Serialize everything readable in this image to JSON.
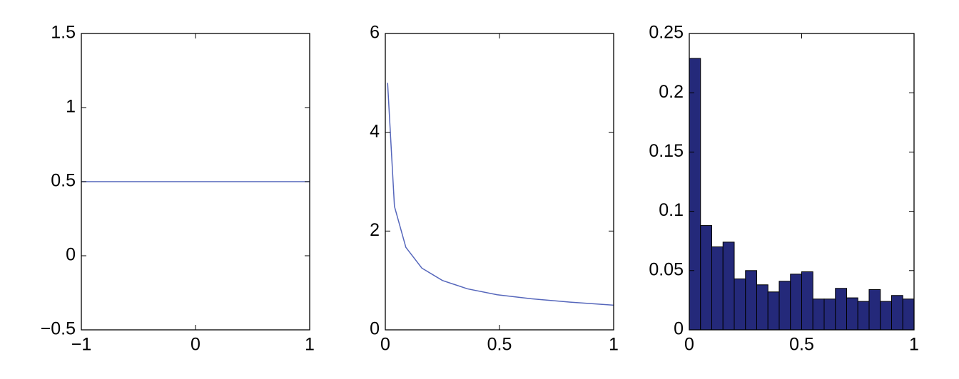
{
  "chart_data": [
    {
      "type": "line",
      "color": "#5566bb",
      "x": [
        -1,
        1
      ],
      "values": [
        0.5,
        0.5
      ],
      "xlim": [
        -1,
        1
      ],
      "xticks": [
        {
          "value": -1,
          "label": "−1"
        },
        0,
        1
      ],
      "ylim": [
        -0.5,
        1.5
      ],
      "yticks": [
        {
          "value": -0.5,
          "label": "−0.5"
        },
        0,
        0.5,
        1,
        1.5
      ]
    },
    {
      "type": "line",
      "color": "#5566bb",
      "x": [
        0.01,
        0.04,
        0.09,
        0.16,
        0.25,
        0.36,
        0.49,
        0.64,
        0.81,
        1
      ],
      "values": [
        5,
        2.5,
        1.67,
        1.25,
        1,
        0.83,
        0.71,
        0.63,
        0.56,
        0.5
      ],
      "xlim": [
        0,
        1
      ],
      "xticks": [
        0,
        0.5,
        1
      ],
      "ylim": [
        0,
        6
      ],
      "yticks": [
        0,
        2,
        4,
        6
      ]
    },
    {
      "type": "histogram",
      "color": "#24297a",
      "bins": [
        0,
        0.05,
        0.1,
        0.15,
        0.2,
        0.25,
        0.3,
        0.35,
        0.4,
        0.45,
        0.5,
        0.55,
        0.6,
        0.65,
        0.7,
        0.75,
        0.8,
        0.85,
        0.9,
        0.95,
        1
      ],
      "values": [
        0.229,
        0.088,
        0.07,
        0.074,
        0.043,
        0.05,
        0.038,
        0.032,
        0.041,
        0.047,
        0.049,
        0.026,
        0.026,
        0.035,
        0.027,
        0.024,
        0.034,
        0.024,
        0.029,
        0.026
      ],
      "xlim": [
        0,
        1
      ],
      "xticks": [
        0,
        0.5,
        1
      ],
      "ylim": [
        0,
        0.25
      ],
      "yticks": [
        0,
        0.05,
        0.1,
        0.15,
        0.2,
        0.25
      ]
    }
  ]
}
